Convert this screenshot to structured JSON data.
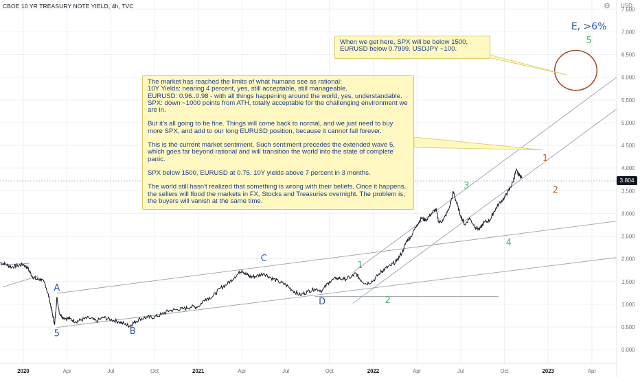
{
  "header": {
    "title": "CBOE 10 YR TREASURY NOTE YIELD, 4h, TVC"
  },
  "currency": "USD",
  "last_price": "3.804",
  "notes": {
    "main": [
      "The market has reached the limits of what humans see as rational:\n10Y Yields: nearing 4 percent, yes, still acceptable, still manageable.\nEURUSD: 0.96..0.98 - with all things happening around the world, yes, understandable.\nSPX: down ~1000 points from ATH, totally acceptable for the challenging environment we are in.",
      "But it's all going to be fine. Things will come back to normal, and we just need to buy more SPX, and add to our long EURUSD position, because it cannot fall forever.",
      "This is the current market sentiment. Such sentiment precedes the extended wave 5, which goes far beyond rational and will transition the world into the state of complete panic.",
      "SPX below 1500, EURUSD at 0.75. 10Y yields above 7 percent in 3 months.",
      "The world still hasn't realized that something is wrong with their beliefs. Once it happens, the sellers will flood the markets in FX, Stocks and Treasuries overnight. The problem is, the buyers will vanish at the same time."
    ],
    "target": "When we get here, SPX will be below 1500,\nEURUSD below 0.7999. USDJPY ~100."
  },
  "wave_labels": [
    {
      "text": "5",
      "color": "#2a56a8",
      "t": 2.3,
      "y": 0.3
    },
    {
      "text": "A",
      "color": "#2a56a8",
      "t": 2.3,
      "y": 1.3
    },
    {
      "text": "B",
      "color": "#2a56a8",
      "t": 7.5,
      "y": 0.35
    },
    {
      "text": "C",
      "color": "#2a56a8",
      "t": 16.5,
      "y": 1.95
    },
    {
      "text": "D",
      "color": "#2a56a8",
      "t": 20.5,
      "y": 1.0
    },
    {
      "text": "1",
      "color": "#4caf73",
      "t": 23.1,
      "y": 1.8
    },
    {
      "text": "2",
      "color": "#4caf73",
      "t": 25.0,
      "y": 1.03
    },
    {
      "text": "3",
      "color": "#4caf73",
      "t": 30.4,
      "y": 3.55
    },
    {
      "text": "4",
      "color": "#4caf73",
      "t": 33.3,
      "y": 2.3
    },
    {
      "text": "1",
      "color": "#c8612d",
      "t": 35.8,
      "y": 4.15
    },
    {
      "text": "2",
      "color": "#c8612d",
      "t": 36.5,
      "y": 3.45
    },
    {
      "text": "E, >6%",
      "color": "#2a56a8",
      "t": 38.8,
      "y": 7.05
    },
    {
      "text": "5",
      "color": "#4caf73",
      "t": 38.8,
      "y": 6.75
    }
  ],
  "colors": {
    "price": "#131722",
    "channel": "#9aa0aa",
    "circle": "#a0522d",
    "grid": "#eef0f3",
    "axis_text": "#6a6d78"
  },
  "chart_data": {
    "type": "line",
    "title": "CBOE 10 YR TREASURY NOTE YIELD, 4h, TVC",
    "xlabel": "",
    "ylabel": "USD",
    "x_unit": "months since Jan 2020 (tick labels show calendar months)",
    "x_ticks": [
      {
        "label": "2020",
        "t": 0
      },
      {
        "label": "Apr",
        "t": 3
      },
      {
        "label": "Jul",
        "t": 6
      },
      {
        "label": "Oct",
        "t": 9
      },
      {
        "label": "2021",
        "t": 12
      },
      {
        "label": "Apr",
        "t": 15
      },
      {
        "label": "Jul",
        "t": 18
      },
      {
        "label": "Oct",
        "t": 21
      },
      {
        "label": "2022",
        "t": 24
      },
      {
        "label": "Apr",
        "t": 27
      },
      {
        "label": "Jul",
        "t": 30
      },
      {
        "label": "Oct",
        "t": 33
      },
      {
        "label": "2023",
        "t": 36
      },
      {
        "label": "Apr",
        "t": 39
      }
    ],
    "xlim": [
      -1.6,
      40.7
    ],
    "ylim": [
      -0.3,
      7.7
    ],
    "y_ticks": [
      "0.000",
      "0.500",
      "1.000",
      "1.500",
      "2.000",
      "2.500",
      "3.000",
      "3.500",
      "4.000",
      "4.500",
      "5.000",
      "5.500",
      "6.000",
      "6.500",
      "7.000",
      "7.500"
    ],
    "series": [
      {
        "values": [
          [
            -1.6,
            1.92
          ],
          [
            -1.2,
            1.88
          ],
          [
            -0.8,
            1.82
          ],
          [
            -0.4,
            1.85
          ],
          [
            0.0,
            1.88
          ],
          [
            0.3,
            1.8
          ],
          [
            0.6,
            1.62
          ],
          [
            0.9,
            1.55
          ],
          [
            1.2,
            1.55
          ],
          [
            1.5,
            1.45
          ],
          [
            1.8,
            1.1
          ],
          [
            2.0,
            0.78
          ],
          [
            2.15,
            0.55
          ],
          [
            2.3,
            1.15
          ],
          [
            2.5,
            0.78
          ],
          [
            2.8,
            0.7
          ],
          [
            3.2,
            0.68
          ],
          [
            3.6,
            0.62
          ],
          [
            4.0,
            0.66
          ],
          [
            4.5,
            0.7
          ],
          [
            5.0,
            0.63
          ],
          [
            5.5,
            0.71
          ],
          [
            6.0,
            0.66
          ],
          [
            6.5,
            0.62
          ],
          [
            7.0,
            0.56
          ],
          [
            7.3,
            0.52
          ],
          [
            7.6,
            0.6
          ],
          [
            8.0,
            0.68
          ],
          [
            8.5,
            0.71
          ],
          [
            9.0,
            0.72
          ],
          [
            9.5,
            0.78
          ],
          [
            10.0,
            0.86
          ],
          [
            10.5,
            0.88
          ],
          [
            11.0,
            0.9
          ],
          [
            11.5,
            0.94
          ],
          [
            12.0,
            0.95
          ],
          [
            12.5,
            1.12
          ],
          [
            13.0,
            1.17
          ],
          [
            13.5,
            1.35
          ],
          [
            14.0,
            1.45
          ],
          [
            14.5,
            1.6
          ],
          [
            15.0,
            1.75
          ],
          [
            15.3,
            1.66
          ],
          [
            15.6,
            1.6
          ],
          [
            16.0,
            1.62
          ],
          [
            16.5,
            1.68
          ],
          [
            17.0,
            1.58
          ],
          [
            17.5,
            1.5
          ],
          [
            18.0,
            1.43
          ],
          [
            18.5,
            1.3
          ],
          [
            19.0,
            1.2
          ],
          [
            19.5,
            1.28
          ],
          [
            20.0,
            1.34
          ],
          [
            20.5,
            1.3
          ],
          [
            21.0,
            1.5
          ],
          [
            21.5,
            1.58
          ],
          [
            22.0,
            1.55
          ],
          [
            22.5,
            1.6
          ],
          [
            22.8,
            1.68
          ],
          [
            23.1,
            1.55
          ],
          [
            23.5,
            1.45
          ],
          [
            24.0,
            1.52
          ],
          [
            24.5,
            1.7
          ],
          [
            24.8,
            1.78
          ],
          [
            25.2,
            1.85
          ],
          [
            25.6,
            1.95
          ],
          [
            26.0,
            2.15
          ],
          [
            26.3,
            2.4
          ],
          [
            26.6,
            2.5
          ],
          [
            27.0,
            2.75
          ],
          [
            27.3,
            2.9
          ],
          [
            27.6,
            2.85
          ],
          [
            28.0,
            3.0
          ],
          [
            28.3,
            3.1
          ],
          [
            28.5,
            2.8
          ],
          [
            28.8,
            2.85
          ],
          [
            29.2,
            3.1
          ],
          [
            29.5,
            3.48
          ],
          [
            29.7,
            3.25
          ],
          [
            30.0,
            2.95
          ],
          [
            30.3,
            2.75
          ],
          [
            30.6,
            2.9
          ],
          [
            31.0,
            2.7
          ],
          [
            31.3,
            2.65
          ],
          [
            31.6,
            2.8
          ],
          [
            32.0,
            2.85
          ],
          [
            32.3,
            3.05
          ],
          [
            32.6,
            3.2
          ],
          [
            33.0,
            3.35
          ],
          [
            33.3,
            3.5
          ],
          [
            33.6,
            3.7
          ],
          [
            33.8,
            3.95
          ],
          [
            34.0,
            3.85
          ],
          [
            34.2,
            3.8
          ]
        ]
      }
    ],
    "lines": [
      {
        "from": [
          1.0,
          1.62
        ],
        "to": [
          -1.4,
          1.38
        ]
      },
      {
        "from": [
          -1.6,
          1.87
        ],
        "to": [
          0.4,
          1.9
        ]
      },
      {
        "from": [
          2.3,
          1.24
        ],
        "to": [
          40.7,
          2.83
        ]
      },
      {
        "from": [
          2.3,
          0.49
        ],
        "to": [
          40.7,
          2.03
        ]
      },
      {
        "from": [
          20.0,
          1.17
        ],
        "to": [
          32.6,
          1.17
        ]
      },
      {
        "from": [
          22.6,
          1.02
        ],
        "to": [
          40.7,
          5.3
        ]
      },
      {
        "from": [
          22.6,
          1.7
        ],
        "to": [
          40.7,
          6.0
        ]
      }
    ],
    "callouts": [
      {
        "note": "main",
        "to": [
          35.6,
          4.4
        ]
      },
      {
        "note": "target",
        "to": [
          37.3,
          6.05
        ]
      }
    ],
    "ellipse": {
      "cx": 37.9,
      "cy": 6.15,
      "rx": 1.45,
      "ry": 0.44
    }
  }
}
